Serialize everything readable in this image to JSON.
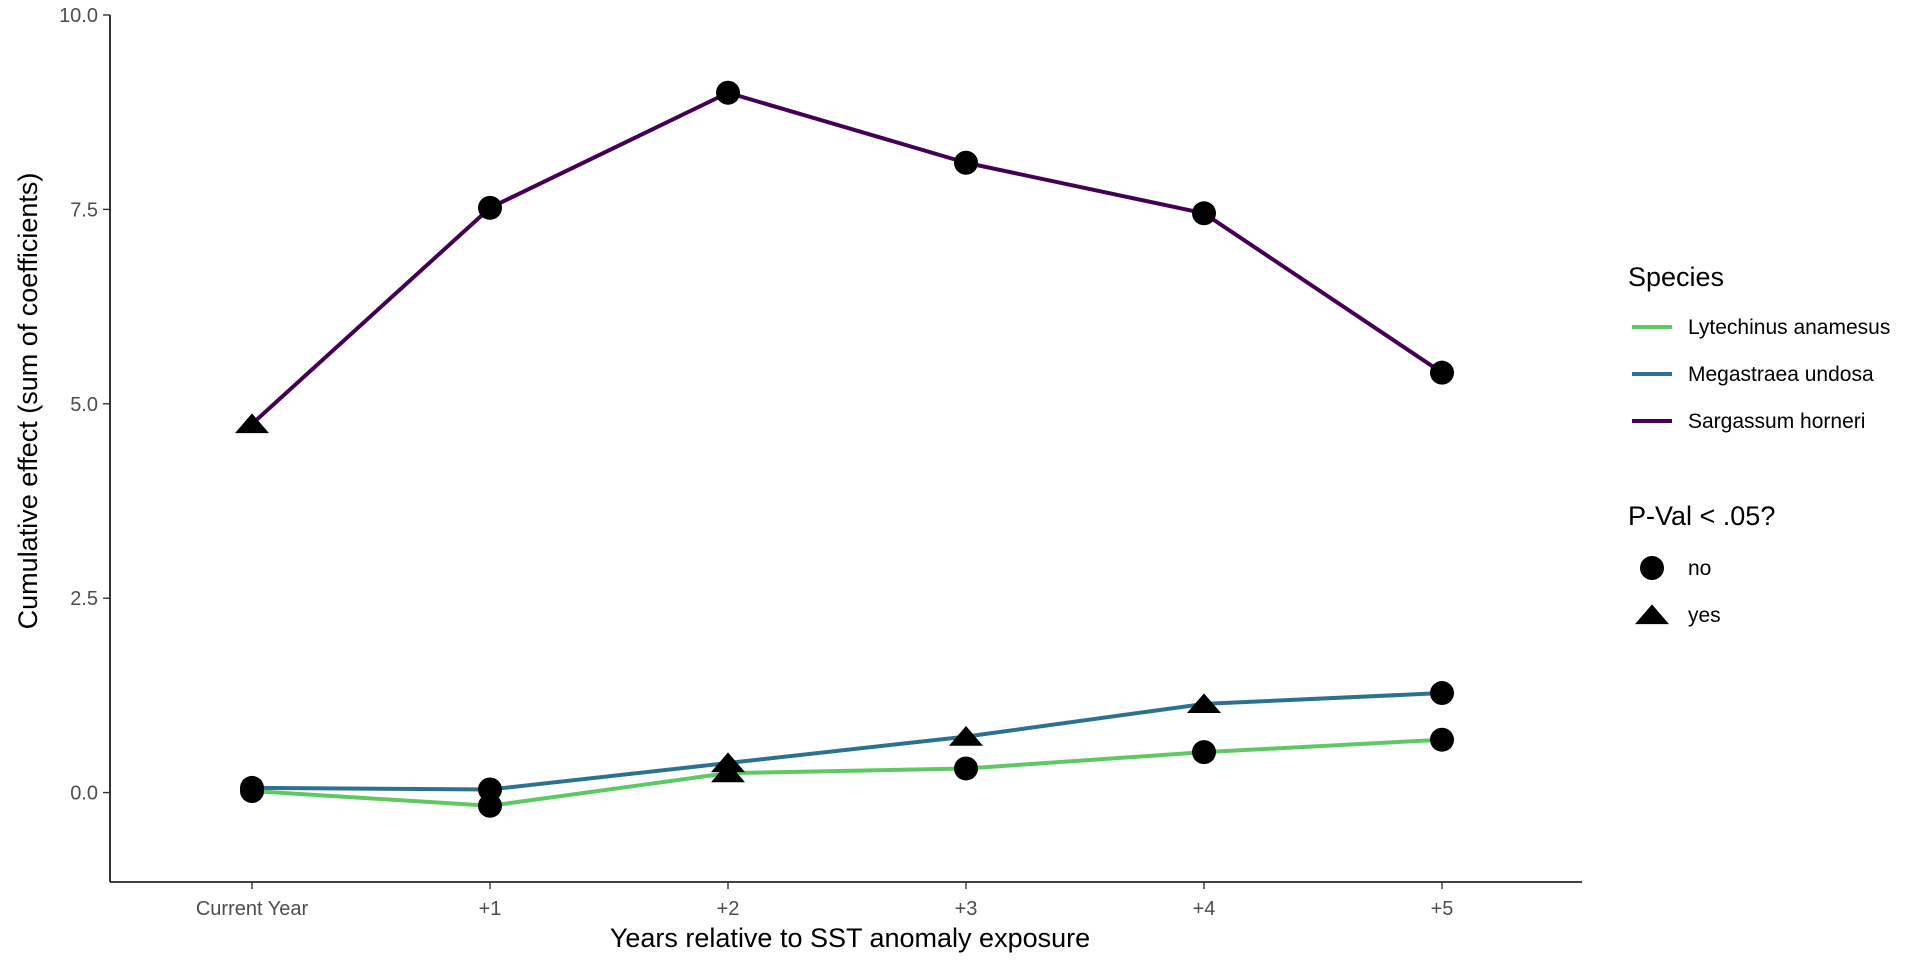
{
  "chart_data": {
    "type": "line",
    "title": "",
    "xlabel": "Years relative to SST anomaly exposure",
    "ylabel": "Cumulative effect (sum of coefficients)",
    "categories": [
      "Current Year",
      "+1",
      "+2",
      "+3",
      "+4",
      "+5"
    ],
    "ylim": [
      -1.15,
      10.0
    ],
    "yticks": [
      0.0,
      2.5,
      5.0,
      7.5,
      10.0
    ],
    "ytick_labels": [
      "0.0",
      "2.5",
      "5.0",
      "7.5",
      "10.0"
    ],
    "grid": false,
    "legend_position": "right",
    "series": [
      {
        "name": "Lytechinus anamesus",
        "color": "#5ec962",
        "values": [
          0.02,
          -0.17,
          0.25,
          0.31,
          0.52,
          0.68
        ],
        "significant": [
          "no",
          "no",
          "yes",
          "no",
          "no",
          "no"
        ]
      },
      {
        "name": "Megastraea undosa",
        "color": "#2c728e",
        "values": [
          0.06,
          0.04,
          0.38,
          0.72,
          1.14,
          1.28
        ],
        "significant": [
          "no",
          "no",
          "yes",
          "yes",
          "yes",
          "no"
        ]
      },
      {
        "name": "Sargassum horneri",
        "color": "#440154",
        "values": [
          4.74,
          7.52,
          9.0,
          8.1,
          7.45,
          5.4
        ],
        "significant": [
          "yes",
          "no",
          "no",
          "no",
          "no",
          "no"
        ]
      }
    ],
    "legends": {
      "species_title": "Species",
      "shape_title": "P-Val < .05?",
      "shape_entries": [
        {
          "label": "no",
          "shape": "circle"
        },
        {
          "label": "yes",
          "shape": "triangle"
        }
      ]
    }
  }
}
